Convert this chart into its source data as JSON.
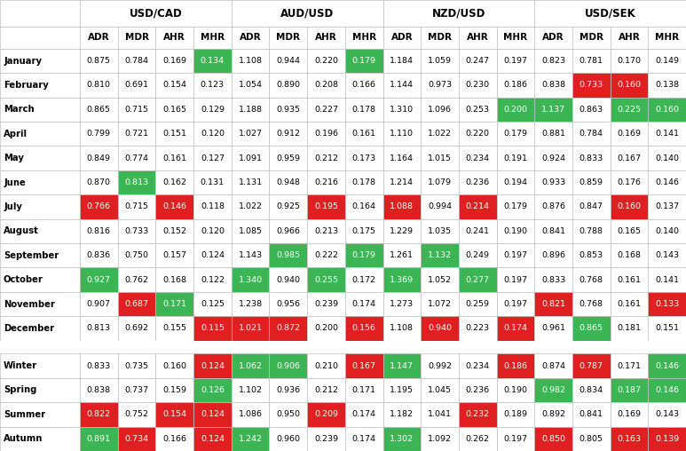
{
  "currency_pairs": [
    "USD/CAD",
    "AUD/USD",
    "NZD/USD",
    "USD/SEK"
  ],
  "col_headers": [
    "ADR",
    "MDR",
    "AHR",
    "MHR"
  ],
  "row_labels_months": [
    "January",
    "February",
    "March",
    "April",
    "May",
    "June",
    "July",
    "August",
    "September",
    "October",
    "November",
    "December"
  ],
  "row_labels_seasons": [
    "Winter",
    "Spring",
    "Summer",
    "Autumn"
  ],
  "data": [
    [
      0.875,
      0.784,
      0.169,
      0.134,
      1.108,
      0.944,
      0.22,
      0.179,
      1.184,
      1.059,
      0.247,
      0.197,
      0.823,
      0.781,
      0.17,
      0.149
    ],
    [
      0.81,
      0.691,
      0.154,
      0.123,
      1.054,
      0.89,
      0.208,
      0.166,
      1.144,
      0.973,
      0.23,
      0.186,
      0.838,
      0.733,
      0.16,
      0.138
    ],
    [
      0.865,
      0.715,
      0.165,
      0.129,
      1.188,
      0.935,
      0.227,
      0.178,
      1.31,
      1.096,
      0.253,
      0.2,
      1.137,
      0.863,
      0.225,
      0.16
    ],
    [
      0.799,
      0.721,
      0.151,
      0.12,
      1.027,
      0.912,
      0.196,
      0.161,
      1.11,
      1.022,
      0.22,
      0.179,
      0.881,
      0.784,
      0.169,
      0.141
    ],
    [
      0.849,
      0.774,
      0.161,
      0.127,
      1.091,
      0.959,
      0.212,
      0.173,
      1.164,
      1.015,
      0.234,
      0.191,
      0.924,
      0.833,
      0.167,
      0.14
    ],
    [
      0.87,
      0.813,
      0.162,
      0.131,
      1.131,
      0.948,
      0.216,
      0.178,
      1.214,
      1.079,
      0.236,
      0.194,
      0.933,
      0.859,
      0.176,
      0.146
    ],
    [
      0.766,
      0.715,
      0.146,
      0.118,
      1.022,
      0.925,
      0.195,
      0.164,
      1.088,
      0.994,
      0.214,
      0.179,
      0.876,
      0.847,
      0.16,
      0.137
    ],
    [
      0.816,
      0.733,
      0.152,
      0.12,
      1.085,
      0.966,
      0.213,
      0.175,
      1.229,
      1.035,
      0.241,
      0.19,
      0.841,
      0.788,
      0.165,
      0.14
    ],
    [
      0.836,
      0.75,
      0.157,
      0.124,
      1.143,
      0.985,
      0.222,
      0.179,
      1.261,
      1.132,
      0.249,
      0.197,
      0.896,
      0.853,
      0.168,
      0.143
    ],
    [
      0.927,
      0.762,
      0.168,
      0.122,
      1.34,
      0.94,
      0.255,
      0.172,
      1.369,
      1.052,
      0.277,
      0.197,
      0.833,
      0.768,
      0.161,
      0.141
    ],
    [
      0.907,
      0.687,
      0.171,
      0.125,
      1.238,
      0.956,
      0.239,
      0.174,
      1.273,
      1.072,
      0.259,
      0.197,
      0.821,
      0.768,
      0.161,
      0.133
    ],
    [
      0.813,
      0.692,
      0.155,
      0.115,
      1.021,
      0.872,
      0.2,
      0.156,
      1.108,
      0.94,
      0.223,
      0.174,
      0.961,
      0.865,
      0.181,
      0.151
    ],
    [
      0.833,
      0.735,
      0.16,
      0.124,
      1.062,
      0.906,
      0.21,
      0.167,
      1.147,
      0.992,
      0.234,
      0.186,
      0.874,
      0.787,
      0.171,
      0.146
    ],
    [
      0.838,
      0.737,
      0.159,
      0.126,
      1.102,
      0.936,
      0.212,
      0.171,
      1.195,
      1.045,
      0.236,
      0.19,
      0.982,
      0.834,
      0.187,
      0.146
    ],
    [
      0.822,
      0.752,
      0.154,
      0.124,
      1.086,
      0.95,
      0.209,
      0.174,
      1.182,
      1.041,
      0.232,
      0.189,
      0.892,
      0.841,
      0.169,
      0.143
    ],
    [
      0.891,
      0.734,
      0.166,
      0.124,
      1.242,
      0.96,
      0.239,
      0.174,
      1.302,
      1.092,
      0.262,
      0.197,
      0.85,
      0.805,
      0.163,
      0.139
    ]
  ],
  "cell_colors": [
    [
      "white",
      "white",
      "white",
      "green",
      "white",
      "white",
      "white",
      "green",
      "white",
      "white",
      "white",
      "white",
      "white",
      "white",
      "white",
      "white"
    ],
    [
      "white",
      "white",
      "white",
      "white",
      "white",
      "white",
      "white",
      "white",
      "white",
      "white",
      "white",
      "white",
      "white",
      "red",
      "red",
      "white"
    ],
    [
      "white",
      "white",
      "white",
      "white",
      "white",
      "white",
      "white",
      "white",
      "white",
      "white",
      "white",
      "green",
      "green",
      "white",
      "green",
      "green"
    ],
    [
      "white",
      "white",
      "white",
      "white",
      "white",
      "white",
      "white",
      "white",
      "white",
      "white",
      "white",
      "white",
      "white",
      "white",
      "white",
      "white"
    ],
    [
      "white",
      "white",
      "white",
      "white",
      "white",
      "white",
      "white",
      "white",
      "white",
      "white",
      "white",
      "white",
      "white",
      "white",
      "white",
      "white"
    ],
    [
      "white",
      "green",
      "white",
      "white",
      "white",
      "white",
      "white",
      "white",
      "white",
      "white",
      "white",
      "white",
      "white",
      "white",
      "white",
      "white"
    ],
    [
      "red",
      "white",
      "red",
      "white",
      "white",
      "white",
      "red",
      "white",
      "red",
      "white",
      "red",
      "white",
      "white",
      "white",
      "red",
      "white"
    ],
    [
      "white",
      "white",
      "white",
      "white",
      "white",
      "white",
      "white",
      "white",
      "white",
      "white",
      "white",
      "white",
      "white",
      "white",
      "white",
      "white"
    ],
    [
      "white",
      "white",
      "white",
      "white",
      "white",
      "green",
      "white",
      "green",
      "white",
      "green",
      "white",
      "white",
      "white",
      "white",
      "white",
      "white"
    ],
    [
      "green",
      "white",
      "white",
      "white",
      "green",
      "white",
      "green",
      "white",
      "green",
      "white",
      "green",
      "white",
      "white",
      "white",
      "white",
      "white"
    ],
    [
      "white",
      "red",
      "green",
      "white",
      "white",
      "white",
      "white",
      "white",
      "white",
      "white",
      "white",
      "white",
      "red",
      "white",
      "white",
      "red"
    ],
    [
      "white",
      "white",
      "white",
      "red",
      "red",
      "red",
      "white",
      "red",
      "white",
      "red",
      "white",
      "red",
      "white",
      "green",
      "white",
      "white"
    ],
    [
      "white",
      "white",
      "white",
      "red",
      "green",
      "green",
      "white",
      "red",
      "green",
      "white",
      "white",
      "red",
      "white",
      "red",
      "white",
      "green"
    ],
    [
      "white",
      "white",
      "white",
      "green",
      "white",
      "white",
      "white",
      "white",
      "white",
      "white",
      "white",
      "white",
      "green",
      "white",
      "green",
      "green"
    ],
    [
      "red",
      "white",
      "red",
      "red",
      "white",
      "white",
      "red",
      "white",
      "white",
      "white",
      "red",
      "white",
      "white",
      "white",
      "white",
      "white"
    ],
    [
      "green",
      "red",
      "white",
      "red",
      "green",
      "white",
      "white",
      "white",
      "green",
      "white",
      "white",
      "white",
      "red",
      "white",
      "red",
      "red"
    ]
  ],
  "green_color": "#3CB554",
  "red_color": "#E02020",
  "white_color": "#FFFFFF",
  "border_color": "#C0C0C0",
  "figwidth": 7.73,
  "figheight": 5.08,
  "dpi": 100
}
